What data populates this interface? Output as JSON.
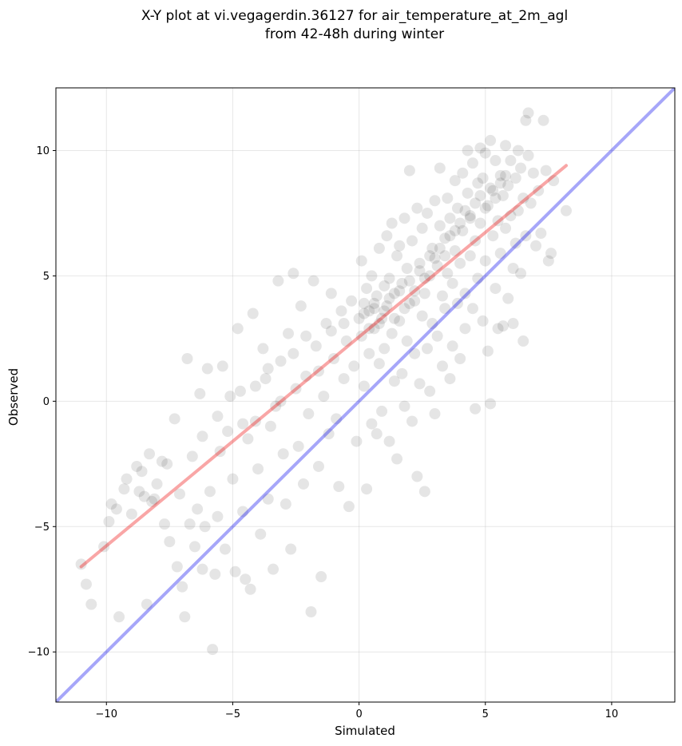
{
  "chart_data": {
    "type": "scatter",
    "title_line1": "X-Y plot at vi.vegagerdin.36127 for air_temperature_at_2m_agl",
    "title_line2": "from 42-48h during winter",
    "xlabel": "Simulated",
    "ylabel": "Observed",
    "xlim": [
      -12,
      12.5
    ],
    "ylim": [
      -12,
      12.5
    ],
    "xticks": [
      -10,
      -5,
      0,
      5,
      10
    ],
    "yticks": [
      -10,
      -5,
      0,
      5,
      10
    ],
    "xtick_labels": [
      "−10",
      "−5",
      "0",
      "5",
      "10"
    ],
    "ytick_labels": [
      "−10",
      "−5",
      "0",
      "5",
      "10"
    ],
    "grid": true,
    "colors": {
      "points": "#000000",
      "identity_line": "#0000ee",
      "fit_line": "#ee0000"
    },
    "identity_line": {
      "x": [
        -12,
        12.5
      ],
      "y": [
        -12,
        12.5
      ]
    },
    "fit_line": {
      "x": [
        -11,
        8.2
      ],
      "y": [
        -6.6,
        9.4
      ]
    },
    "series": [
      {
        "points": [
          [
            -11.0,
            -6.5
          ],
          [
            -10.8,
            -7.3
          ],
          [
            -10.6,
            -8.1
          ],
          [
            -10.1,
            -5.8
          ],
          [
            -9.9,
            -4.8
          ],
          [
            -9.8,
            -4.1
          ],
          [
            -9.6,
            -4.3
          ],
          [
            -9.5,
            -8.6
          ],
          [
            -9.3,
            -3.5
          ],
          [
            -9.2,
            -3.1
          ],
          [
            -9.0,
            -4.5
          ],
          [
            -8.8,
            -2.6
          ],
          [
            -8.6,
            -2.8
          ],
          [
            -8.5,
            -3.8
          ],
          [
            -8.4,
            -8.1
          ],
          [
            -8.3,
            -2.1
          ],
          [
            -8.2,
            -4.0
          ],
          [
            -8.0,
            -3.3
          ],
          [
            -7.8,
            -2.4
          ],
          [
            -7.7,
            -4.9
          ],
          [
            -7.5,
            -5.6
          ],
          [
            -7.3,
            -0.7
          ],
          [
            -7.2,
            -6.6
          ],
          [
            -7.0,
            -7.4
          ],
          [
            -6.9,
            -8.6
          ],
          [
            -6.8,
            1.7
          ],
          [
            -6.6,
            -2.2
          ],
          [
            -6.5,
            -5.8
          ],
          [
            -6.4,
            -4.3
          ],
          [
            -6.3,
            0.3
          ],
          [
            -6.2,
            -6.7
          ],
          [
            -6.1,
            -5.0
          ],
          [
            -6.0,
            1.3
          ],
          [
            -5.9,
            -3.6
          ],
          [
            -5.8,
            -9.9
          ],
          [
            -5.7,
            -6.9
          ],
          [
            -5.6,
            -4.6
          ],
          [
            -5.5,
            -2.0
          ],
          [
            -5.4,
            1.4
          ],
          [
            -5.3,
            -5.9
          ],
          [
            -5.2,
            -1.2
          ],
          [
            -5.0,
            -3.1
          ],
          [
            -4.9,
            -6.8
          ],
          [
            -4.8,
            2.9
          ],
          [
            -4.7,
            0.4
          ],
          [
            -4.6,
            -4.4
          ],
          [
            -4.5,
            -7.1
          ],
          [
            -4.4,
            -1.5
          ],
          [
            -4.3,
            -7.5
          ],
          [
            -4.2,
            3.5
          ],
          [
            -4.1,
            -0.8
          ],
          [
            -4.0,
            -2.7
          ],
          [
            -3.9,
            -5.3
          ],
          [
            -3.8,
            2.1
          ],
          [
            -3.7,
            0.9
          ],
          [
            -3.6,
            -3.9
          ],
          [
            -3.5,
            -1.0
          ],
          [
            -3.4,
            -6.7
          ],
          [
            -3.3,
            -0.2
          ],
          [
            -3.2,
            4.8
          ],
          [
            -3.1,
            1.6
          ],
          [
            -3.0,
            -2.1
          ],
          [
            -2.9,
            -4.1
          ],
          [
            -2.8,
            2.7
          ],
          [
            -2.7,
            -5.9
          ],
          [
            -2.6,
            5.1
          ],
          [
            -2.5,
            0.5
          ],
          [
            -2.4,
            -1.8
          ],
          [
            -2.3,
            3.8
          ],
          [
            -2.2,
            -3.3
          ],
          [
            -2.1,
            1.0
          ],
          [
            -2.0,
            -0.5
          ],
          [
            -1.9,
            -8.4
          ],
          [
            -1.8,
            4.8
          ],
          [
            -1.7,
            2.2
          ],
          [
            -1.6,
            -2.6
          ],
          [
            -1.5,
            -7.0
          ],
          [
            -1.4,
            0.2
          ],
          [
            -1.3,
            3.1
          ],
          [
            -1.2,
            -1.3
          ],
          [
            -1.1,
            4.3
          ],
          [
            -1.0,
            1.7
          ],
          [
            -0.9,
            -0.7
          ],
          [
            -0.8,
            -3.4
          ],
          [
            -0.7,
            3.6
          ],
          [
            -0.6,
            0.9
          ],
          [
            -0.5,
            2.4
          ],
          [
            -0.4,
            -4.2
          ],
          [
            -0.3,
            4.0
          ],
          [
            -0.2,
            1.4
          ],
          [
            -0.1,
            -1.6
          ],
          [
            0.0,
            3.3
          ],
          [
            0.1,
            5.6
          ],
          [
            0.1,
            2.6
          ],
          [
            0.2,
            0.6
          ],
          [
            0.2,
            3.9
          ],
          [
            0.3,
            -3.5
          ],
          [
            0.3,
            4.5
          ],
          [
            0.4,
            1.9
          ],
          [
            0.4,
            3.6
          ],
          [
            0.5,
            -0.9
          ],
          [
            0.5,
            5.0
          ],
          [
            0.6,
            2.9
          ],
          [
            0.6,
            3.7
          ],
          [
            0.7,
            -1.3
          ],
          [
            0.7,
            4.2
          ],
          [
            0.8,
            1.5
          ],
          [
            0.8,
            6.1
          ],
          [
            0.9,
            3.3
          ],
          [
            0.9,
            -0.4
          ],
          [
            1.0,
            4.6
          ],
          [
            1.0,
            2.1
          ],
          [
            1.1,
            3.8
          ],
          [
            1.1,
            6.6
          ],
          [
            1.2,
            -1.6
          ],
          [
            1.2,
            4.9
          ],
          [
            1.3,
            2.7
          ],
          [
            1.3,
            7.1
          ],
          [
            1.4,
            0.8
          ],
          [
            1.4,
            4.3
          ],
          [
            1.5,
            -2.3
          ],
          [
            1.5,
            5.8
          ],
          [
            1.6,
            3.2
          ],
          [
            1.6,
            6.2
          ],
          [
            1.7,
            1.1
          ],
          [
            1.7,
            4.7
          ],
          [
            1.8,
            7.3
          ],
          [
            1.8,
            -0.2
          ],
          [
            1.9,
            5.3
          ],
          [
            1.9,
            2.4
          ],
          [
            2.0,
            9.2
          ],
          [
            2.0,
            3.9
          ],
          [
            2.1,
            -0.8
          ],
          [
            2.1,
            6.4
          ],
          [
            2.2,
            1.9
          ],
          [
            2.2,
            4.4
          ],
          [
            2.3,
            -3.0
          ],
          [
            2.3,
            7.7
          ],
          [
            2.4,
            5.2
          ],
          [
            2.4,
            0.7
          ],
          [
            2.5,
            3.4
          ],
          [
            2.5,
            6.9
          ],
          [
            2.6,
            -3.6
          ],
          [
            2.6,
            4.9
          ],
          [
            2.7,
            2.1
          ],
          [
            2.7,
            7.5
          ],
          [
            2.8,
            5.8
          ],
          [
            2.8,
            0.4
          ],
          [
            2.9,
            3.1
          ],
          [
            2.9,
            6.1
          ],
          [
            3.0,
            8.0
          ],
          [
            3.0,
            -0.5
          ],
          [
            3.1,
            5.4
          ],
          [
            3.1,
            2.6
          ],
          [
            3.2,
            7.0
          ],
          [
            3.2,
            9.3
          ],
          [
            3.3,
            4.2
          ],
          [
            3.3,
            1.4
          ],
          [
            3.4,
            6.5
          ],
          [
            3.4,
            3.7
          ],
          [
            3.5,
            8.1
          ],
          [
            3.5,
            5.1
          ],
          [
            3.6,
            0.9
          ],
          [
            3.6,
            7.3
          ],
          [
            3.7,
            4.7
          ],
          [
            3.7,
            2.2
          ],
          [
            3.8,
            8.8
          ],
          [
            3.8,
            6.0
          ],
          [
            3.9,
            3.9
          ],
          [
            3.9,
            7.7
          ],
          [
            4.0,
            5.5
          ],
          [
            4.0,
            1.7
          ],
          [
            4.1,
            9.1
          ],
          [
            4.1,
            6.8
          ],
          [
            4.2,
            4.3
          ],
          [
            4.2,
            2.9
          ],
          [
            4.3,
            8.3
          ],
          [
            4.3,
            10.0
          ],
          [
            4.4,
            5.8
          ],
          [
            4.4,
            7.4
          ],
          [
            4.5,
            3.7
          ],
          [
            4.5,
            9.5
          ],
          [
            4.6,
            6.4
          ],
          [
            4.6,
            -0.3
          ],
          [
            4.7,
            8.7
          ],
          [
            4.7,
            4.9
          ],
          [
            4.8,
            10.1
          ],
          [
            4.8,
            7.1
          ],
          [
            4.9,
            3.2
          ],
          [
            4.9,
            8.9
          ],
          [
            5.0,
            5.6
          ],
          [
            5.0,
            9.9
          ],
          [
            5.1,
            2.0
          ],
          [
            5.1,
            7.8
          ],
          [
            5.2,
            10.4
          ],
          [
            5.2,
            -0.1
          ],
          [
            5.3,
            6.6
          ],
          [
            5.3,
            8.4
          ],
          [
            5.4,
            4.5
          ],
          [
            5.4,
            9.6
          ],
          [
            5.5,
            7.2
          ],
          [
            5.5,
            2.9
          ],
          [
            5.6,
            9.0
          ],
          [
            5.6,
            5.9
          ],
          [
            5.7,
            8.2
          ],
          [
            5.7,
            3.0
          ],
          [
            5.8,
            10.2
          ],
          [
            5.8,
            6.9
          ],
          [
            5.9,
            4.1
          ],
          [
            5.9,
            8.6
          ],
          [
            6.0,
            7.4
          ],
          [
            6.0,
            9.6
          ],
          [
            6.1,
            5.3
          ],
          [
            6.1,
            3.1
          ],
          [
            6.2,
            8.9
          ],
          [
            6.2,
            6.3
          ],
          [
            6.3,
            10.0
          ],
          [
            6.3,
            7.6
          ],
          [
            6.4,
            5.1
          ],
          [
            6.4,
            9.3
          ],
          [
            6.5,
            2.4
          ],
          [
            6.5,
            8.1
          ],
          [
            6.6,
            11.2
          ],
          [
            6.6,
            6.6
          ],
          [
            6.7,
            11.5
          ],
          [
            6.7,
            9.8
          ],
          [
            6.8,
            7.9
          ],
          [
            6.9,
            9.1
          ],
          [
            7.0,
            6.2
          ],
          [
            7.1,
            8.4
          ],
          [
            7.2,
            6.7
          ],
          [
            7.3,
            11.2
          ],
          [
            7.4,
            9.2
          ],
          [
            7.5,
            5.6
          ],
          [
            7.6,
            5.9
          ],
          [
            7.7,
            8.8
          ],
          [
            8.2,
            7.6
          ],
          [
            -8.7,
            -3.6
          ],
          [
            -8.1,
            -3.9
          ],
          [
            -7.6,
            -2.5
          ],
          [
            -7.1,
            -3.7
          ],
          [
            -6.7,
            -4.9
          ],
          [
            -6.2,
            -1.4
          ],
          [
            -5.6,
            -0.6
          ],
          [
            -5.1,
            0.2
          ],
          [
            -4.6,
            -0.9
          ],
          [
            -4.1,
            0.6
          ],
          [
            -3.6,
            1.3
          ],
          [
            -3.1,
            0.0
          ],
          [
            -2.6,
            1.9
          ],
          [
            -2.1,
            2.6
          ],
          [
            -1.6,
            1.2
          ],
          [
            -1.1,
            2.8
          ],
          [
            -0.6,
            3.1
          ],
          [
            0.2,
            3.5
          ],
          [
            0.4,
            2.9
          ],
          [
            0.6,
            3.9
          ],
          [
            0.8,
            3.1
          ],
          [
            1.0,
            3.6
          ],
          [
            1.2,
            4.1
          ],
          [
            1.4,
            3.3
          ],
          [
            1.6,
            4.4
          ],
          [
            1.8,
            3.7
          ],
          [
            2.0,
            4.8
          ],
          [
            2.2,
            4.0
          ],
          [
            2.4,
            5.5
          ],
          [
            2.6,
            4.3
          ],
          [
            2.8,
            5.0
          ],
          [
            3.0,
            5.7
          ],
          [
            3.2,
            6.1
          ],
          [
            3.4,
            5.8
          ],
          [
            3.6,
            6.6
          ],
          [
            3.8,
            6.8
          ],
          [
            4.0,
            7.1
          ],
          [
            4.2,
            7.6
          ],
          [
            4.4,
            7.3
          ],
          [
            4.6,
            7.9
          ],
          [
            4.8,
            8.2
          ],
          [
            5.0,
            7.7
          ],
          [
            5.2,
            8.5
          ],
          [
            5.4,
            8.1
          ],
          [
            5.6,
            8.7
          ],
          [
            5.8,
            9.0
          ]
        ]
      }
    ]
  }
}
